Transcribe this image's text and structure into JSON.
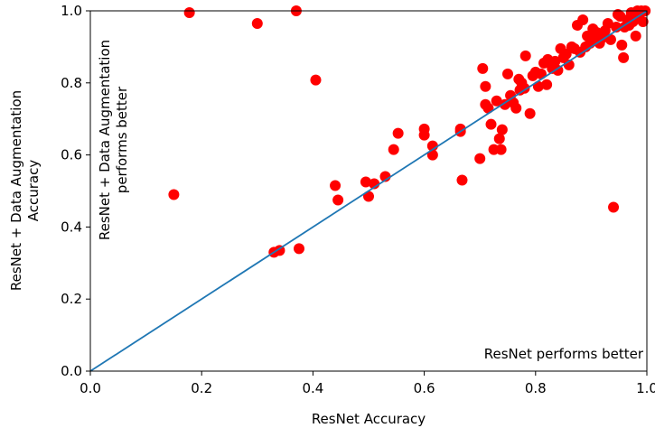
{
  "chart_data": {
    "type": "scatter",
    "xlabel": "ResNet Accuracy",
    "ylabel_lines": [
      "ResNet + Data Augmentation",
      "Accuracy"
    ],
    "xlim": [
      0.0,
      1.0
    ],
    "ylim": [
      0.0,
      1.0
    ],
    "x_ticks": [
      0.0,
      0.2,
      0.4,
      0.6,
      0.8,
      1.0
    ],
    "y_ticks": [
      0.0,
      0.2,
      0.4,
      0.6,
      0.8,
      1.0
    ],
    "x_tick_labels": [
      "0.0",
      "0.2",
      "0.4",
      "0.6",
      "0.8",
      "1.0"
    ],
    "y_tick_labels": [
      "0.0",
      "0.2",
      "0.4",
      "0.6",
      "0.8",
      "1.0"
    ],
    "grid": false,
    "annotations": {
      "upper_left_lines": [
        "ResNet + Data Augmentation",
        "performs better"
      ],
      "lower_right": "ResNet performs better"
    },
    "diagonal": {
      "x": [
        0.0,
        1.0
      ],
      "y": [
        0.0,
        1.0
      ],
      "color": "#1f77b4"
    },
    "point_color": "#ff0000",
    "points": [
      [
        0.15,
        0.49
      ],
      [
        0.178,
        0.995
      ],
      [
        0.3,
        0.965
      ],
      [
        0.37,
        1.0
      ],
      [
        0.405,
        0.808
      ],
      [
        0.33,
        0.33
      ],
      [
        0.34,
        0.335
      ],
      [
        0.375,
        0.34
      ],
      [
        0.44,
        0.515
      ],
      [
        0.445,
        0.475
      ],
      [
        0.495,
        0.525
      ],
      [
        0.5,
        0.485
      ],
      [
        0.51,
        0.52
      ],
      [
        0.53,
        0.54
      ],
      [
        0.545,
        0.615
      ],
      [
        0.553,
        0.66
      ],
      [
        0.6,
        0.672
      ],
      [
        0.6,
        0.655
      ],
      [
        0.615,
        0.6
      ],
      [
        0.615,
        0.625
      ],
      [
        0.665,
        0.665
      ],
      [
        0.665,
        0.672
      ],
      [
        0.668,
        0.53
      ],
      [
        0.7,
        0.59
      ],
      [
        0.705,
        0.84
      ],
      [
        0.71,
        0.79
      ],
      [
        0.71,
        0.74
      ],
      [
        0.715,
        0.73
      ],
      [
        0.72,
        0.685
      ],
      [
        0.725,
        0.615
      ],
      [
        0.73,
        0.75
      ],
      [
        0.735,
        0.645
      ],
      [
        0.738,
        0.615
      ],
      [
        0.74,
        0.67
      ],
      [
        0.745,
        0.74
      ],
      [
        0.75,
        0.825
      ],
      [
        0.755,
        0.765
      ],
      [
        0.76,
        0.745
      ],
      [
        0.765,
        0.73
      ],
      [
        0.77,
        0.81
      ],
      [
        0.772,
        0.78
      ],
      [
        0.775,
        0.8
      ],
      [
        0.78,
        0.785
      ],
      [
        0.782,
        0.875
      ],
      [
        0.79,
        0.715
      ],
      [
        0.795,
        0.82
      ],
      [
        0.8,
        0.83
      ],
      [
        0.805,
        0.79
      ],
      [
        0.81,
        0.825
      ],
      [
        0.815,
        0.855
      ],
      [
        0.82,
        0.795
      ],
      [
        0.822,
        0.865
      ],
      [
        0.83,
        0.84
      ],
      [
        0.835,
        0.86
      ],
      [
        0.84,
        0.835
      ],
      [
        0.845,
        0.895
      ],
      [
        0.85,
        0.87
      ],
      [
        0.855,
        0.88
      ],
      [
        0.86,
        0.85
      ],
      [
        0.865,
        0.9
      ],
      [
        0.87,
        0.895
      ],
      [
        0.875,
        0.96
      ],
      [
        0.88,
        0.885
      ],
      [
        0.885,
        0.975
      ],
      [
        0.89,
        0.9
      ],
      [
        0.893,
        0.93
      ],
      [
        0.898,
        0.91
      ],
      [
        0.903,
        0.95
      ],
      [
        0.908,
        0.93
      ],
      [
        0.91,
        0.94
      ],
      [
        0.915,
        0.91
      ],
      [
        0.92,
        0.925
      ],
      [
        0.925,
        0.945
      ],
      [
        0.93,
        0.965
      ],
      [
        0.935,
        0.92
      ],
      [
        0.94,
        0.455
      ],
      [
        0.945,
        0.955
      ],
      [
        0.948,
        0.99
      ],
      [
        0.952,
        0.985
      ],
      [
        0.955,
        0.905
      ],
      [
        0.958,
        0.87
      ],
      [
        0.96,
        0.955
      ],
      [
        0.965,
        0.975
      ],
      [
        0.968,
        0.96
      ],
      [
        0.972,
        0.995
      ],
      [
        0.975,
        0.97
      ],
      [
        0.98,
        0.93
      ],
      [
        0.983,
        1.0
      ],
      [
        0.986,
        0.99
      ],
      [
        0.99,
        1.0
      ],
      [
        0.993,
        0.97
      ],
      [
        0.997,
        1.0
      ]
    ]
  }
}
